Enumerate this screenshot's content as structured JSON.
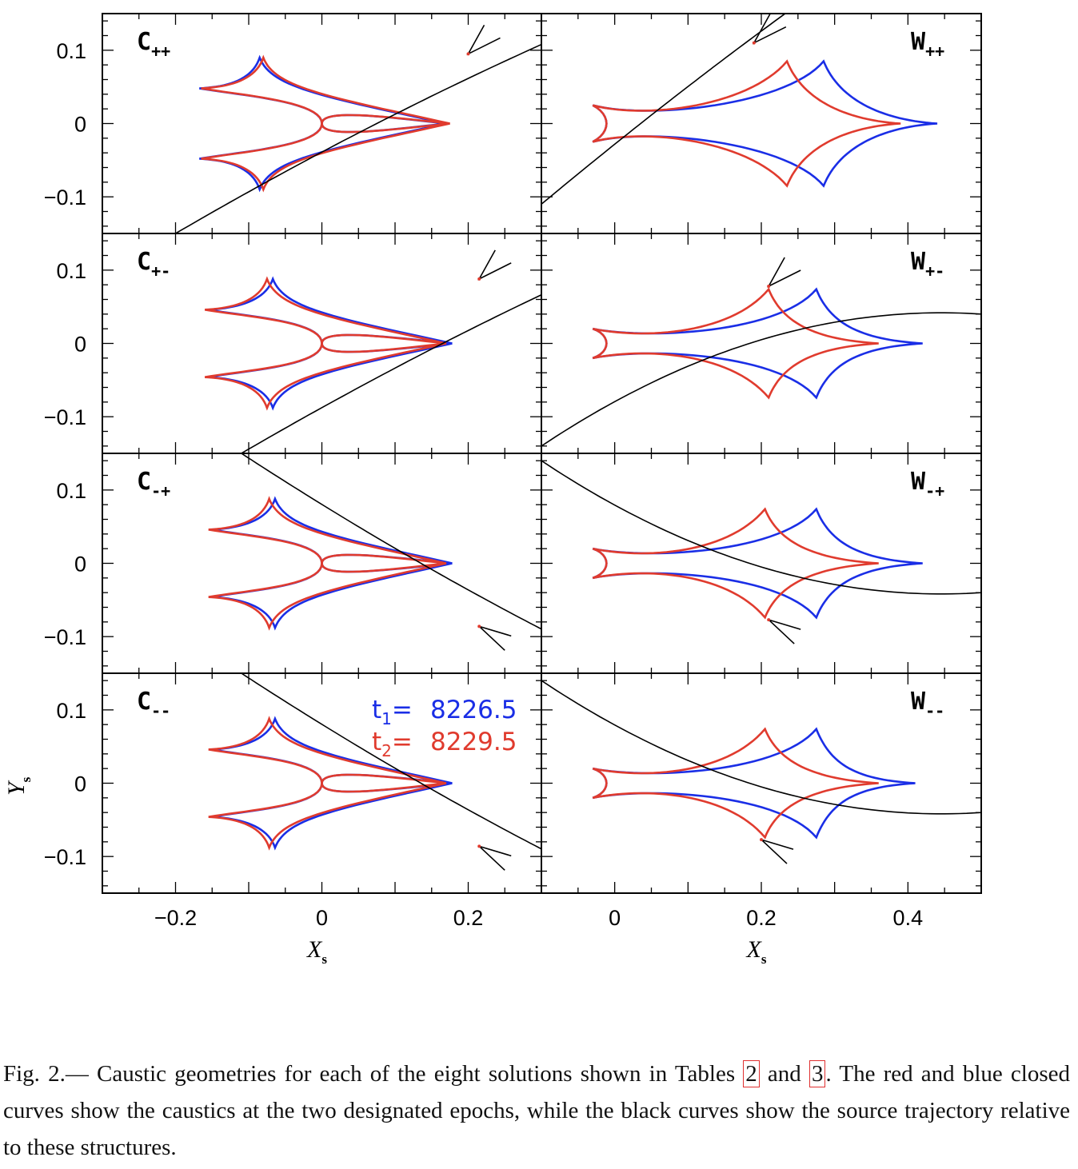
{
  "figure": {
    "xlabel": "X",
    "xlabel_sub": "s",
    "ylabel": "Y",
    "ylabel_sub": "s",
    "epochs": [
      {
        "label": "t",
        "sub": "1",
        "value": "8226.5",
        "color": "#1a2ee6"
      },
      {
        "label": "t",
        "sub": "2",
        "value": "8229.5",
        "color": "#e03b2e"
      }
    ],
    "trajectory_color": "#000000"
  },
  "chart_data": [
    {
      "type": "line",
      "panel": "C++",
      "family": "C",
      "label": "C",
      "sub": "++",
      "xlim": [
        -0.3,
        0.3
      ],
      "ylim": [
        -0.15,
        0.15
      ],
      "yticks": [
        "0.1",
        "0",
        "−0.1"
      ],
      "xticks": [],
      "traj_shape": "up",
      "caustic": {
        "cusp_x": -0.08,
        "cusp_y": 0.09,
        "left_x": -0.165,
        "left_y": 0.048,
        "right_x": 0.175,
        "inner_x": 0.0,
        "dx_blue": -0.005,
        "dx_red": 0.0
      },
      "arrow": {
        "x": 0.2,
        "y": 0.095
      }
    },
    {
      "type": "line",
      "panel": "W++",
      "family": "W",
      "label": "W",
      "sub": "++",
      "xlim": [
        -0.1,
        0.5
      ],
      "ylim": [
        -0.15,
        0.15
      ],
      "yticks": [],
      "xticks": [],
      "traj_shape": "up",
      "caustic": {
        "cusp_y": 0.085,
        "left_x": -0.03,
        "left_y": 0.025,
        "inner_x": -0.005,
        "cusp_x_blue": 0.285,
        "cusp_x_red": 0.235,
        "right_x_blue": 0.44,
        "right_x_red": 0.39
      },
      "arrow": {
        "x": 0.19,
        "y": 0.11
      }
    },
    {
      "type": "line",
      "panel": "C+-",
      "family": "C",
      "label": "C",
      "sub": "+-",
      "xlim": [
        -0.3,
        0.3
      ],
      "ylim": [
        -0.15,
        0.15
      ],
      "yticks": [
        "0.1",
        "0",
        "−0.1"
      ],
      "xticks": [],
      "traj_shape": "up",
      "caustic": {
        "cusp_x": -0.075,
        "cusp_y": 0.088,
        "left_x": -0.16,
        "left_y": 0.046,
        "right_x": 0.17,
        "inner_x": 0.0,
        "dx_blue": 0.008,
        "dx_red": 0.0
      },
      "arrow": {
        "x": 0.215,
        "y": 0.088
      }
    },
    {
      "type": "line",
      "panel": "W+-",
      "family": "W",
      "label": "W",
      "sub": "+-",
      "xlim": [
        -0.1,
        0.5
      ],
      "ylim": [
        -0.15,
        0.15
      ],
      "yticks": [],
      "xticks": [],
      "traj_shape": "up",
      "caustic": {
        "cusp_y": 0.074,
        "left_x": -0.03,
        "left_y": 0.02,
        "inner_x": -0.005,
        "cusp_x_blue": 0.275,
        "cusp_x_red": 0.21,
        "right_x_blue": 0.42,
        "right_x_red": 0.36
      },
      "arrow": {
        "x": 0.21,
        "y": 0.078
      }
    },
    {
      "type": "line",
      "panel": "C-+",
      "family": "C",
      "label": "C",
      "sub": "-+",
      "xlim": [
        -0.3,
        0.3
      ],
      "ylim": [
        -0.15,
        0.15
      ],
      "yticks": [
        "0.1",
        "0",
        "−0.1"
      ],
      "xticks": [],
      "traj_shape": "down",
      "caustic": {
        "cusp_x": -0.072,
        "cusp_y": 0.088,
        "left_x": -0.155,
        "left_y": 0.046,
        "right_x": 0.17,
        "inner_x": 0.0,
        "dx_blue": 0.008,
        "dx_red": 0.0
      },
      "arrow": {
        "x": 0.215,
        "y": -0.086
      }
    },
    {
      "type": "line",
      "panel": "W-+",
      "family": "W",
      "label": "W",
      "sub": "-+",
      "xlim": [
        -0.1,
        0.5
      ],
      "ylim": [
        -0.15,
        0.15
      ],
      "yticks": [],
      "xticks": [],
      "traj_shape": "down",
      "caustic": {
        "cusp_y": 0.074,
        "left_x": -0.03,
        "left_y": 0.02,
        "inner_x": -0.005,
        "cusp_x_blue": 0.275,
        "cusp_x_red": 0.205,
        "right_x_blue": 0.42,
        "right_x_red": 0.36
      },
      "arrow": {
        "x": 0.21,
        "y": -0.077
      }
    },
    {
      "type": "line",
      "panel": "C--",
      "family": "C",
      "label": "C",
      "sub": "--",
      "xlim": [
        -0.3,
        0.3
      ],
      "ylim": [
        -0.15,
        0.15
      ],
      "yticks": [
        "0.1",
        "0",
        "−0.1"
      ],
      "xticks": [
        "−0.2",
        "0",
        "0.2"
      ],
      "xtick_values": [
        -0.2,
        0,
        0.2
      ],
      "traj_shape": "down",
      "caustic": {
        "cusp_x": -0.072,
        "cusp_y": 0.088,
        "left_x": -0.155,
        "left_y": 0.046,
        "right_x": 0.17,
        "inner_x": 0.0,
        "dx_blue": 0.008,
        "dx_red": 0.0
      },
      "arrow": {
        "x": 0.215,
        "y": -0.086
      }
    },
    {
      "type": "line",
      "panel": "W--",
      "family": "W",
      "label": "W",
      "sub": "--",
      "xlim": [
        -0.1,
        0.5
      ],
      "ylim": [
        -0.15,
        0.15
      ],
      "yticks": [],
      "xticks": [
        "0",
        "0.2",
        "0.4"
      ],
      "xtick_values": [
        0,
        0.2,
        0.4
      ],
      "traj_shape": "down",
      "caustic": {
        "cusp_y": 0.074,
        "left_x": -0.03,
        "left_y": 0.02,
        "inner_x": -0.005,
        "cusp_x_blue": 0.275,
        "cusp_x_red": 0.205,
        "right_x_blue": 0.41,
        "right_x_red": 0.36
      },
      "arrow": {
        "x": 0.2,
        "y": -0.077
      }
    }
  ],
  "caption": {
    "prefix": "Fig.  2.— Caustic geometries for each of the eight solutions shown in Tables ",
    "ref1": "2",
    "mid": " and ",
    "ref2": "3",
    "suffix": ".  The red and blue closed curves show the caustics at the two designated epochs, while the black curves show the source trajectory relative to these structures."
  }
}
